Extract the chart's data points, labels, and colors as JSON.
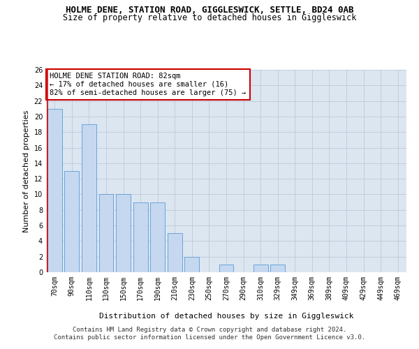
{
  "title": "HOLME DENE, STATION ROAD, GIGGLESWICK, SETTLE, BD24 0AB",
  "subtitle": "Size of property relative to detached houses in Giggleswick",
  "xlabel": "Distribution of detached houses by size in Giggleswick",
  "ylabel": "Number of detached properties",
  "footer_line1": "Contains HM Land Registry data © Crown copyright and database right 2024.",
  "footer_line2": "Contains public sector information licensed under the Open Government Licence v3.0.",
  "annotation_title": "HOLME DENE STATION ROAD: 82sqm",
  "annotation_line2": "← 17% of detached houses are smaller (16)",
  "annotation_line3": "82% of semi-detached houses are larger (75) →",
  "categories": [
    "70sqm",
    "90sqm",
    "110sqm",
    "130sqm",
    "150sqm",
    "170sqm",
    "190sqm",
    "210sqm",
    "230sqm",
    "250sqm",
    "270sqm",
    "290sqm",
    "310sqm",
    "329sqm",
    "349sqm",
    "369sqm",
    "389sqm",
    "409sqm",
    "429sqm",
    "449sqm",
    "469sqm"
  ],
  "values": [
    21,
    13,
    19,
    10,
    10,
    9,
    9,
    5,
    2,
    0,
    1,
    0,
    1,
    1,
    0,
    0,
    0,
    0,
    0,
    0,
    0
  ],
  "bar_color": "#c5d8f0",
  "bar_edge_color": "#5b9bd5",
  "highlight_line_color": "#cc0000",
  "ylim": [
    0,
    26
  ],
  "yticks": [
    0,
    2,
    4,
    6,
    8,
    10,
    12,
    14,
    16,
    18,
    20,
    22,
    24,
    26
  ],
  "grid_color": "#c0c8d8",
  "background_color": "#dce6f1",
  "annotation_box_color": "#ffffff",
  "annotation_box_edge": "#cc0000",
  "title_fontsize": 9,
  "subtitle_fontsize": 8.5,
  "axis_label_fontsize": 8,
  "tick_fontsize": 7,
  "annotation_fontsize": 7.5,
  "footer_fontsize": 6.5
}
